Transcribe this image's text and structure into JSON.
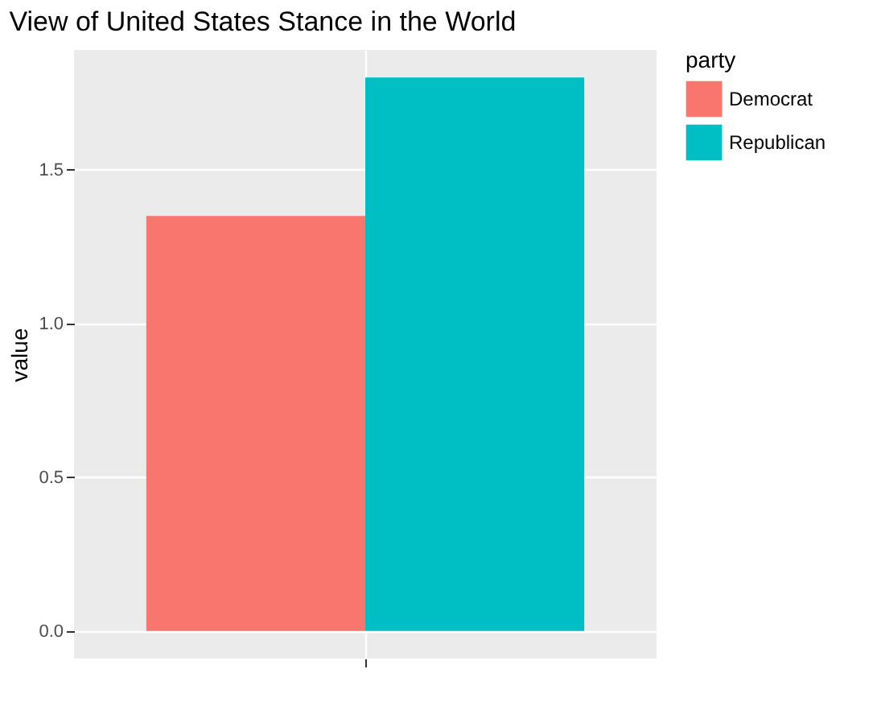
{
  "chart_data": {
    "type": "bar",
    "title": "View of United States Stance in the World",
    "ylabel": "value",
    "legend_title": "party",
    "categories": [
      null
    ],
    "series": [
      {
        "name": "Democrat",
        "color": "#f8766d",
        "values": [
          1.35
        ]
      },
      {
        "name": "Republican",
        "color": "#00bfc4",
        "values": [
          1.8
        ]
      }
    ],
    "ylim": [
      -0.09,
      1.89
    ],
    "yticks": [
      "0.0",
      0.5,
      "1.0",
      1.5
    ],
    "grid": true,
    "legend": "right"
  }
}
